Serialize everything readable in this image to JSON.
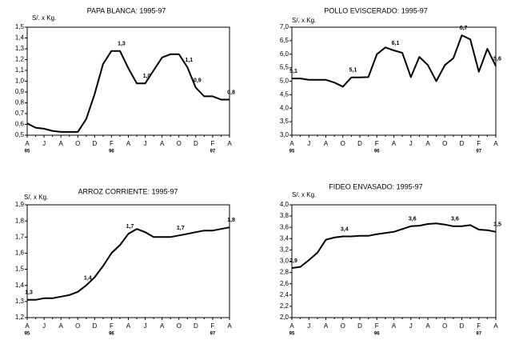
{
  "chart_data": [
    {
      "type": "line",
      "title": "PAPA BLANCA: 1995-97",
      "ylabel": "S/. x Kg.",
      "color": "#000000",
      "categories": [
        "A",
        null,
        "J",
        null,
        "A",
        null,
        "O",
        null,
        "D",
        null,
        "F",
        null,
        "A",
        null,
        "J",
        null,
        "A",
        null,
        "O",
        null,
        "D",
        null,
        "F",
        null,
        "A"
      ],
      "x_sublabels": [
        "95",
        null,
        null,
        null,
        null,
        null,
        null,
        null,
        null,
        null,
        "96",
        null,
        null,
        null,
        null,
        null,
        null,
        null,
        null,
        null,
        null,
        null,
        "97",
        null,
        null
      ],
      "values": [
        0.61,
        0.57,
        0.56,
        0.54,
        0.53,
        0.53,
        0.53,
        0.65,
        0.88,
        1.16,
        1.28,
        1.28,
        1.12,
        0.98,
        0.98,
        1.1,
        1.22,
        1.25,
        1.25,
        1.13,
        0.94,
        0.86,
        0.86,
        0.83,
        0.83
      ],
      "value_labels": [
        null,
        null,
        null,
        null,
        null,
        null,
        null,
        null,
        null,
        null,
        null,
        "1,3",
        null,
        null,
        "1,0",
        null,
        null,
        null,
        null,
        "1,1",
        "0,9",
        null,
        null,
        null,
        "0,8"
      ],
      "ylim": [
        0.5,
        1.5
      ],
      "yticks": [
        {
          "value": 0.5,
          "label": "0,5"
        },
        {
          "value": 0.6,
          "label": "0,6"
        },
        {
          "value": 0.7,
          "label": "0,7"
        },
        {
          "value": 0.8,
          "label": "0,8"
        },
        {
          "value": 0.9,
          "label": "0,9"
        },
        {
          "value": 1.0,
          "label": "1,0"
        },
        {
          "value": 1.1,
          "label": "1,1"
        },
        {
          "value": 1.2,
          "label": "1,2"
        },
        {
          "value": 1.3,
          "label": "1,3"
        },
        {
          "value": 1.4,
          "label": "1,4"
        },
        {
          "value": 1.5,
          "label": "1,5"
        }
      ]
    },
    {
      "type": "line",
      "title": "POLLO EVISCERADO: 1995-97",
      "ylabel": "S/. x Kg.",
      "color": "#000000",
      "categories": [
        "A",
        null,
        "J",
        null,
        "A",
        null,
        "O",
        null,
        "D",
        null,
        "F",
        null,
        "A",
        null,
        "J",
        null,
        "A",
        null,
        "O",
        null,
        "D",
        null,
        "F",
        null,
        "A"
      ],
      "x_sublabels": [
        "95",
        null,
        null,
        null,
        null,
        null,
        null,
        null,
        null,
        null,
        "96",
        null,
        null,
        null,
        null,
        null,
        null,
        null,
        null,
        null,
        null,
        null,
        "97",
        null,
        null
      ],
      "values": [
        5.1,
        5.1,
        5.05,
        5.05,
        5.05,
        4.95,
        4.8,
        5.14,
        5.14,
        5.15,
        6.0,
        6.25,
        6.14,
        6.05,
        5.15,
        5.9,
        5.6,
        5.0,
        5.6,
        5.85,
        6.7,
        6.55,
        5.35,
        6.2,
        5.56
      ],
      "value_labels": [
        "5,1",
        null,
        null,
        null,
        null,
        null,
        null,
        "5,1",
        null,
        null,
        null,
        null,
        "6,1",
        null,
        null,
        null,
        null,
        null,
        null,
        null,
        "6,7",
        null,
        null,
        null,
        "5,6"
      ],
      "ylim": [
        3.0,
        7.0
      ],
      "yticks": [
        {
          "value": 3.0,
          "label": "3,0"
        },
        {
          "value": 3.5,
          "label": "3,5"
        },
        {
          "value": 4.0,
          "label": "4,0"
        },
        {
          "value": 4.5,
          "label": "4,5"
        },
        {
          "value": 5.0,
          "label": "5,0"
        },
        {
          "value": 5.5,
          "label": "5,5"
        },
        {
          "value": 6.0,
          "label": "6,0"
        },
        {
          "value": 6.5,
          "label": "6,5"
        },
        {
          "value": 7.0,
          "label": "7,0"
        }
      ]
    },
    {
      "type": "line",
      "title": "ARROZ CORRIENTE: 1995-97",
      "ylabel": "S/. x Kg.",
      "color": "#000000",
      "categories": [
        "A",
        null,
        "J",
        null,
        "A",
        null,
        "O",
        null,
        "D",
        null,
        "F",
        null,
        "A",
        null,
        "J",
        null,
        "A",
        null,
        "O",
        null,
        "D",
        null,
        "F",
        null,
        "A"
      ],
      "x_sublabels": [
        "95",
        null,
        null,
        null,
        null,
        null,
        null,
        null,
        null,
        null,
        "96",
        null,
        null,
        null,
        null,
        null,
        null,
        null,
        null,
        null,
        null,
        null,
        "97",
        null,
        null
      ],
      "values": [
        1.31,
        1.31,
        1.32,
        1.32,
        1.33,
        1.34,
        1.36,
        1.4,
        1.45,
        1.52,
        1.6,
        1.65,
        1.72,
        1.75,
        1.73,
        1.7,
        1.7,
        1.7,
        1.71,
        1.72,
        1.73,
        1.74,
        1.74,
        1.75,
        1.76
      ],
      "value_labels": [
        "1,3",
        null,
        null,
        null,
        null,
        null,
        null,
        "1,4",
        null,
        null,
        null,
        null,
        "1,7",
        null,
        null,
        null,
        null,
        null,
        "1,7",
        null,
        null,
        null,
        null,
        null,
        "1,8"
      ],
      "ylim": [
        1.2,
        1.9
      ],
      "yticks": [
        {
          "value": 1.2,
          "label": "1,2"
        },
        {
          "value": 1.3,
          "label": "1,3"
        },
        {
          "value": 1.4,
          "label": "1,4"
        },
        {
          "value": 1.5,
          "label": "1,5"
        },
        {
          "value": 1.6,
          "label": "1,6"
        },
        {
          "value": 1.7,
          "label": "1,7"
        },
        {
          "value": 1.8,
          "label": "1,8"
        },
        {
          "value": 1.9,
          "label": "1,9"
        }
      ]
    },
    {
      "type": "line",
      "title": "FIDEO ENVASADO: 1995-97",
      "ylabel": "S/. x Kg.",
      "color": "#000000",
      "categories": [
        "A",
        null,
        "J",
        null,
        "A",
        null,
        "O",
        null,
        "D",
        null,
        "F",
        null,
        "A",
        null,
        "J",
        null,
        "A",
        null,
        "O",
        null,
        "D",
        null,
        "F",
        null,
        "A"
      ],
      "x_sublabels": [
        "95",
        null,
        null,
        null,
        null,
        null,
        null,
        null,
        null,
        null,
        "96",
        null,
        null,
        null,
        null,
        null,
        null,
        null,
        null,
        null,
        null,
        null,
        "97",
        null,
        null
      ],
      "values": [
        2.88,
        2.9,
        3.02,
        3.15,
        3.38,
        3.42,
        3.44,
        3.44,
        3.45,
        3.45,
        3.48,
        3.5,
        3.52,
        3.57,
        3.62,
        3.63,
        3.66,
        3.67,
        3.65,
        3.62,
        3.62,
        3.64,
        3.56,
        3.55,
        3.52
      ],
      "value_labels": [
        "2,9",
        null,
        null,
        null,
        null,
        null,
        "3,4",
        null,
        null,
        null,
        null,
        null,
        null,
        null,
        "3,6",
        null,
        null,
        null,
        null,
        "3,6",
        null,
        null,
        null,
        null,
        "3,5"
      ],
      "ylim": [
        2.0,
        4.0
      ],
      "yticks": [
        {
          "value": 2.0,
          "label": "2,0"
        },
        {
          "value": 2.2,
          "label": "2,2"
        },
        {
          "value": 2.4,
          "label": "2,4"
        },
        {
          "value": 2.6,
          "label": "2,6"
        },
        {
          "value": 2.8,
          "label": "2,8"
        },
        {
          "value": 3.0,
          "label": "3,0"
        },
        {
          "value": 3.2,
          "label": "3,2"
        },
        {
          "value": 3.4,
          "label": "3,4"
        },
        {
          "value": 3.6,
          "label": "3,6"
        },
        {
          "value": 3.8,
          "label": "3,8"
        },
        {
          "value": 4.0,
          "label": "4,0"
        }
      ]
    }
  ]
}
